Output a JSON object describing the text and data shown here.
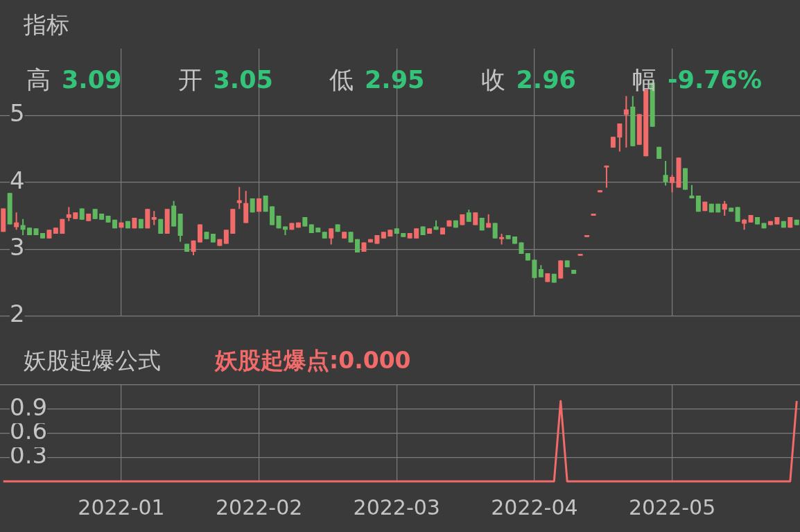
{
  "chart_data": [
    {
      "type": "candlestick",
      "title": "指标",
      "annotations": [
        "高 3.09",
        "开 3.05",
        "低 2.95",
        "收 2.96",
        "幅 -9.76%"
      ],
      "categories": [
        null,
        null,
        null,
        null,
        null,
        null,
        null,
        null,
        null,
        null,
        null,
        null,
        null,
        null,
        null,
        null,
        null,
        null,
        "2022-01",
        null,
        null,
        null,
        null,
        null,
        null,
        null,
        null,
        null,
        null,
        null,
        null,
        null,
        null,
        null,
        null,
        null,
        null,
        null,
        null,
        "2022-02",
        null,
        null,
        null,
        null,
        null,
        null,
        null,
        null,
        null,
        null,
        null,
        null,
        null,
        null,
        null,
        null,
        null,
        null,
        null,
        null,
        "2022-03",
        null,
        null,
        null,
        null,
        null,
        null,
        null,
        null,
        null,
        null,
        null,
        null,
        null,
        null,
        null,
        null,
        null,
        null,
        null,
        null,
        "2022-04",
        null,
        null,
        null,
        null,
        null,
        null,
        null,
        null,
        null,
        null,
        null,
        null,
        null,
        null,
        null,
        null,
        null,
        null,
        null,
        null,
        "2022-05",
        null,
        null,
        null,
        null,
        null,
        null,
        null,
        null,
        null,
        null,
        null,
        null,
        null,
        null,
        null,
        null,
        null,
        null,
        null
      ],
      "ohlc": [
        [
          3.26,
          3.61,
          3.26,
          3.61
        ],
        [
          3.84,
          3.84,
          3.37,
          3.37
        ],
        [
          3.33,
          3.55,
          3.29,
          3.4
        ],
        [
          3.36,
          3.45,
          3.21,
          3.29
        ],
        [
          3.32,
          3.32,
          3.21,
          3.21
        ],
        [
          3.31,
          3.31,
          3.21,
          3.21
        ],
        [
          3.24,
          3.24,
          3.16,
          3.16
        ],
        [
          3.16,
          3.29,
          3.16,
          3.29
        ],
        [
          3.23,
          3.32,
          3.23,
          3.32
        ],
        [
          3.23,
          3.45,
          3.23,
          3.45
        ],
        [
          3.47,
          3.63,
          3.42,
          3.52
        ],
        [
          3.45,
          3.55,
          3.45,
          3.55
        ],
        [
          3.61,
          3.61,
          3.44,
          3.44
        ],
        [
          3.42,
          3.53,
          3.42,
          3.53
        ],
        [
          3.6,
          3.6,
          3.45,
          3.45
        ],
        [
          3.53,
          3.53,
          3.44,
          3.44
        ],
        [
          3.5,
          3.5,
          3.4,
          3.4
        ],
        [
          3.44,
          3.44,
          3.31,
          3.31
        ],
        [
          3.32,
          3.4,
          3.32,
          3.4
        ],
        [
          3.42,
          3.42,
          3.31,
          3.31
        ],
        [
          3.31,
          3.47,
          3.31,
          3.47
        ],
        [
          3.45,
          3.45,
          3.31,
          3.31
        ],
        [
          3.31,
          3.6,
          3.31,
          3.6
        ],
        [
          3.44,
          3.57,
          3.36,
          3.48
        ],
        [
          3.45,
          3.45,
          3.23,
          3.23
        ],
        [
          3.23,
          3.6,
          3.23,
          3.6
        ],
        [
          3.65,
          3.72,
          3.34,
          3.34
        ],
        [
          3.53,
          3.53,
          3.11,
          3.2
        ],
        [
          3.08,
          3.08,
          2.96,
          2.96
        ],
        [
          2.96,
          3.13,
          2.91,
          3.13
        ],
        [
          3.1,
          3.37,
          3.1,
          3.37
        ],
        [
          3.26,
          3.26,
          3.15,
          3.15
        ],
        [
          3.23,
          3.23,
          3.1,
          3.1
        ],
        [
          3.05,
          3.15,
          3.05,
          3.15
        ],
        [
          3.08,
          3.29,
          3.08,
          3.29
        ],
        [
          3.23,
          3.6,
          3.23,
          3.6
        ],
        [
          3.69,
          3.93,
          3.6,
          3.73
        ],
        [
          3.39,
          3.87,
          3.39,
          3.69
        ],
        [
          3.76,
          3.76,
          3.55,
          3.55
        ],
        [
          3.56,
          3.76,
          3.56,
          3.76
        ],
        [
          3.8,
          3.8,
          3.56,
          3.56
        ],
        [
          3.64,
          3.64,
          3.36,
          3.36
        ],
        [
          3.5,
          3.5,
          3.31,
          3.31
        ],
        [
          3.34,
          3.34,
          3.21,
          3.29
        ],
        [
          3.29,
          3.39,
          3.29,
          3.39
        ],
        [
          3.32,
          3.4,
          3.32,
          3.4
        ],
        [
          3.48,
          3.48,
          3.34,
          3.34
        ],
        [
          3.37,
          3.37,
          3.24,
          3.24
        ],
        [
          3.32,
          3.32,
          3.25,
          3.25
        ],
        [
          3.26,
          3.26,
          3.16,
          3.16
        ],
        [
          3.16,
          3.31,
          3.07,
          3.31
        ],
        [
          3.37,
          3.37,
          3.26,
          3.26
        ],
        [
          3.16,
          3.26,
          3.16,
          3.26
        ],
        [
          3.26,
          3.26,
          3.1,
          3.1
        ],
        [
          3.15,
          3.15,
          2.95,
          2.95
        ],
        [
          2.96,
          3.1,
          2.96,
          3.1
        ],
        [
          3.1,
          3.15,
          3.1,
          3.15
        ],
        [
          3.08,
          3.21,
          3.08,
          3.21
        ],
        [
          3.16,
          3.26,
          3.16,
          3.26
        ],
        [
          3.19,
          3.29,
          3.19,
          3.29
        ],
        [
          3.31,
          3.31,
          3.23,
          3.23
        ],
        [
          3.24,
          3.24,
          3.18,
          3.18
        ],
        [
          3.16,
          3.24,
          3.16,
          3.24
        ],
        [
          3.16,
          3.31,
          3.16,
          3.31
        ],
        [
          3.34,
          3.34,
          3.21,
          3.21
        ],
        [
          3.23,
          3.31,
          3.23,
          3.31
        ],
        [
          3.34,
          3.43,
          3.29,
          3.29
        ],
        [
          3.22,
          3.32,
          3.22,
          3.32
        ],
        [
          3.34,
          3.43,
          3.34,
          3.43
        ],
        [
          3.43,
          3.43,
          3.32,
          3.32
        ],
        [
          3.36,
          3.52,
          3.36,
          3.52
        ],
        [
          3.55,
          3.59,
          3.41,
          3.41
        ],
        [
          3.36,
          3.55,
          3.36,
          3.55
        ],
        [
          3.47,
          3.47,
          3.28,
          3.28
        ],
        [
          3.32,
          3.52,
          3.32,
          3.39
        ],
        [
          3.39,
          3.39,
          3.16,
          3.16
        ],
        [
          3.15,
          3.23,
          3.07,
          3.18
        ],
        [
          3.21,
          3.21,
          3.15,
          3.15
        ],
        [
          3.19,
          3.19,
          3.08,
          3.08
        ],
        [
          3.1,
          3.1,
          2.93,
          2.93
        ],
        [
          2.94,
          2.94,
          2.83,
          2.83
        ],
        [
          2.84,
          2.84,
          2.57,
          2.57
        ],
        [
          2.7,
          2.76,
          2.58,
          2.58
        ],
        [
          2.51,
          2.64,
          2.51,
          2.64
        ],
        [
          2.63,
          2.63,
          2.5,
          2.5
        ],
        [
          2.56,
          2.83,
          2.56,
          2.83
        ],
        [
          2.83,
          2.83,
          2.73,
          2.73
        ],
        [
          2.69,
          2.69,
          2.63,
          2.63
        ],
        [
          2.9,
          2.93,
          2.9,
          2.93
        ],
        [
          3.18,
          3.21,
          3.18,
          3.21
        ],
        [
          3.5,
          3.53,
          3.5,
          3.53
        ],
        [
          3.85,
          3.88,
          3.85,
          3.88
        ],
        [
          4.22,
          4.25,
          3.92,
          4.25
        ],
        [
          4.52,
          4.68,
          4.52,
          4.68
        ],
        [
          4.67,
          4.88,
          4.46,
          4.88
        ],
        [
          5.01,
          5.29,
          4.52,
          5.09
        ],
        [
          5.13,
          5.29,
          4.54,
          4.54
        ],
        [
          4.56,
          5.02,
          4.56,
          5.02
        ],
        [
          4.39,
          5.39,
          4.39,
          5.39
        ],
        [
          5.49,
          5.49,
          4.83,
          4.83
        ],
        [
          4.53,
          4.53,
          4.35,
          4.35
        ],
        [
          4.11,
          4.32,
          3.95,
          4.0
        ],
        [
          3.99,
          4.11,
          3.85,
          4.08
        ],
        [
          3.92,
          4.37,
          3.92,
          4.37
        ],
        [
          4.21,
          4.21,
          3.89,
          3.89
        ],
        [
          3.8,
          3.96,
          3.76,
          3.76
        ],
        [
          3.8,
          3.8,
          3.56,
          3.56
        ],
        [
          3.57,
          3.71,
          3.57,
          3.71
        ],
        [
          3.68,
          3.68,
          3.55,
          3.55
        ],
        [
          3.68,
          3.68,
          3.55,
          3.55
        ],
        [
          3.59,
          3.72,
          3.5,
          3.68
        ],
        [
          3.62,
          3.62,
          3.56,
          3.56
        ],
        [
          3.63,
          3.63,
          3.41,
          3.41
        ],
        [
          3.38,
          3.45,
          3.29,
          3.44
        ],
        [
          3.4,
          3.51,
          3.4,
          3.51
        ],
        [
          3.48,
          3.48,
          3.37,
          3.37
        ],
        [
          3.39,
          3.39,
          3.31,
          3.31
        ],
        [
          3.36,
          3.42,
          3.36,
          3.42
        ],
        [
          3.37,
          3.48,
          3.37,
          3.48
        ],
        [
          3.42,
          3.42,
          3.32,
          3.32
        ],
        [
          3.32,
          3.48,
          3.32,
          3.48
        ],
        [
          3.44,
          3.44,
          3.36,
          3.36
        ]
      ],
      "colors": [
        "#f26b6b",
        "#5fb85f",
        "#f26b6b",
        "#5fb85f",
        "#5fb85f",
        "#5fb85f",
        "#5fb85f",
        "#f26b6b",
        "#f26b6b",
        "#f26b6b",
        "#f26b6b",
        "#f26b6b",
        "#5fb85f",
        "#f26b6b",
        "#5fb85f",
        "#5fb85f",
        "#5fb85f",
        "#5fb85f",
        "#f26b6b",
        "#5fb85f",
        "#f26b6b",
        "#5fb85f",
        "#f26b6b",
        "#f26b6b",
        "#5fb85f",
        "#f26b6b",
        "#5fb85f",
        "#5fb85f",
        "#5fb85f",
        "#f26b6b",
        "#f26b6b",
        "#5fb85f",
        "#5fb85f",
        "#f26b6b",
        "#f26b6b",
        "#f26b6b",
        "#f26b6b",
        "#f26b6b",
        "#5fb85f",
        "#f26b6b",
        "#5fb85f",
        "#5fb85f",
        "#5fb85f",
        "#5fb85f",
        "#f26b6b",
        "#f26b6b",
        "#5fb85f",
        "#5fb85f",
        "#5fb85f",
        "#5fb85f",
        "#f26b6b",
        "#5fb85f",
        "#f26b6b",
        "#5fb85f",
        "#5fb85f",
        "#f26b6b",
        "#f26b6b",
        "#f26b6b",
        "#f26b6b",
        "#f26b6b",
        "#5fb85f",
        "#5fb85f",
        "#f26b6b",
        "#f26b6b",
        "#5fb85f",
        "#f26b6b",
        "#5fb85f",
        "#f26b6b",
        "#f26b6b",
        "#5fb85f",
        "#f26b6b",
        "#5fb85f",
        "#f26b6b",
        "#5fb85f",
        "#f26b6b",
        "#5fb85f",
        "#f26b6b",
        "#5fb85f",
        "#5fb85f",
        "#5fb85f",
        "#5fb85f",
        "#5fb85f",
        "#5fb85f",
        "#f26b6b",
        "#5fb85f",
        "#f26b6b",
        "#5fb85f",
        "#5fb85f",
        "#f26b6b",
        "#f26b6b",
        "#f26b6b",
        "#f26b6b",
        "#f26b6b",
        "#f26b6b",
        "#f26b6b",
        "#f26b6b",
        "#5fb85f",
        "#f26b6b",
        "#f26b6b",
        "#5fb85f",
        "#5fb85f",
        "#5fb85f",
        "#f26b6b",
        "#f26b6b",
        "#5fb85f",
        "#5fb85f",
        "#5fb85f",
        "#f26b6b",
        "#5fb85f",
        "#5fb85f",
        "#f26b6b",
        "#5fb85f",
        "#5fb85f",
        "#f26b6b",
        "#f26b6b",
        "#5fb85f",
        "#5fb85f",
        "#f26b6b",
        "#f26b6b",
        "#5fb85f",
        "#f26b6b",
        "#5fb85f"
      ],
      "ylim": [
        2,
        6
      ],
      "yticks": [
        2,
        3,
        4,
        5
      ],
      "grid": true,
      "tick_labels": "y"
    },
    {
      "type": "line",
      "title": "妖股起爆公式",
      "annotations": [
        "妖股起爆点:0.000"
      ],
      "categories": [
        null,
        null,
        null,
        null,
        null,
        null,
        null,
        null,
        null,
        null,
        null,
        null,
        null,
        null,
        null,
        null,
        null,
        null,
        "2022-01",
        null,
        null,
        null,
        null,
        null,
        null,
        null,
        null,
        null,
        null,
        null,
        null,
        null,
        null,
        null,
        null,
        null,
        null,
        null,
        null,
        "2022-02",
        null,
        null,
        null,
        null,
        null,
        null,
        null,
        null,
        null,
        null,
        null,
        null,
        null,
        null,
        null,
        null,
        null,
        null,
        null,
        null,
        "2022-03",
        null,
        null,
        null,
        null,
        null,
        null,
        null,
        null,
        null,
        null,
        null,
        null,
        null,
        null,
        null,
        null,
        null,
        null,
        null,
        null,
        "2022-04",
        null,
        null,
        null,
        null,
        null,
        null,
        null,
        null,
        null,
        null,
        null,
        null,
        null,
        null,
        null,
        null,
        null,
        null,
        null,
        null,
        "2022-05",
        null,
        null,
        null,
        null,
        null,
        null,
        null,
        null,
        null,
        null,
        null,
        null,
        null,
        null,
        null,
        null,
        null,
        null,
        null
      ],
      "series": [
        {
          "color": "#f26b6b",
          "values": [
            0,
            0,
            0,
            0,
            0,
            0,
            0,
            0,
            0,
            0,
            0,
            0,
            0,
            0,
            0,
            0,
            0,
            0,
            0,
            0,
            0,
            0,
            0,
            0,
            0,
            0,
            0,
            0,
            0,
            0,
            0,
            0,
            0,
            0,
            0,
            0,
            0,
            0,
            0,
            0,
            0,
            0,
            0,
            0,
            0,
            0,
            0,
            0,
            0,
            0,
            0,
            0,
            0,
            0,
            0,
            0,
            0,
            0,
            0,
            0,
            0,
            0,
            0,
            0,
            0,
            0,
            0,
            0,
            0,
            0,
            0,
            0,
            0,
            0,
            0,
            0,
            0,
            0,
            0,
            0,
            0,
            0,
            0,
            0,
            0,
            1,
            0,
            0,
            0,
            0,
            0,
            0,
            0,
            0,
            0,
            0,
            0,
            0,
            0,
            0,
            0,
            0,
            0,
            0,
            0,
            0,
            0,
            0,
            0,
            0,
            0,
            0,
            0,
            0,
            0,
            0,
            0,
            0,
            0,
            0,
            0,
            1
          ]
        }
      ],
      "ylim": [
        0,
        1.2
      ],
      "yticks": [
        0.3,
        0.6,
        0.9,
        {
          "value": 1.2,
          "label": null
        }
      ],
      "grid": true
    }
  ]
}
